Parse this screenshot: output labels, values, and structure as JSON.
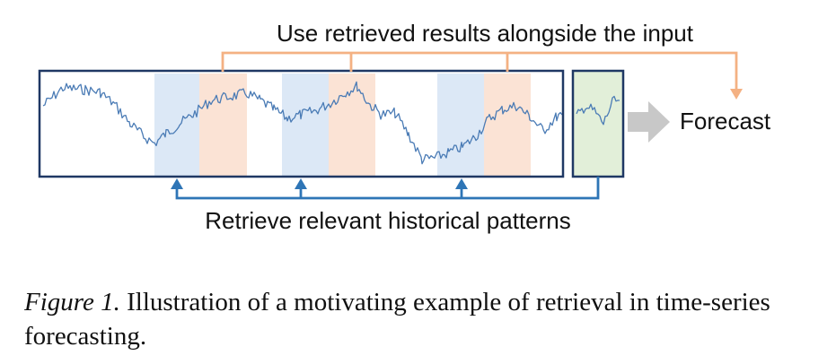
{
  "labels": {
    "top": "Use retrieved results alongside the input",
    "bottom": "Retrieve relevant historical patterns",
    "forecast": "Forecast"
  },
  "caption": {
    "figure_label": "Figure 1.",
    "text": " Illustration of a motivating example of retrieval in time-series forecasting."
  },
  "colors": {
    "frame": "#1f3864",
    "series": "#4a7bb5",
    "retrieved_key": "#dce8f6",
    "retrieved_value": "#fbe3d5",
    "input_window": "#e2efd9",
    "orange_arrow": "#f4b183",
    "blue_arrow": "#2e75b6",
    "forecast_arrow": "#c8c8c8"
  }
}
